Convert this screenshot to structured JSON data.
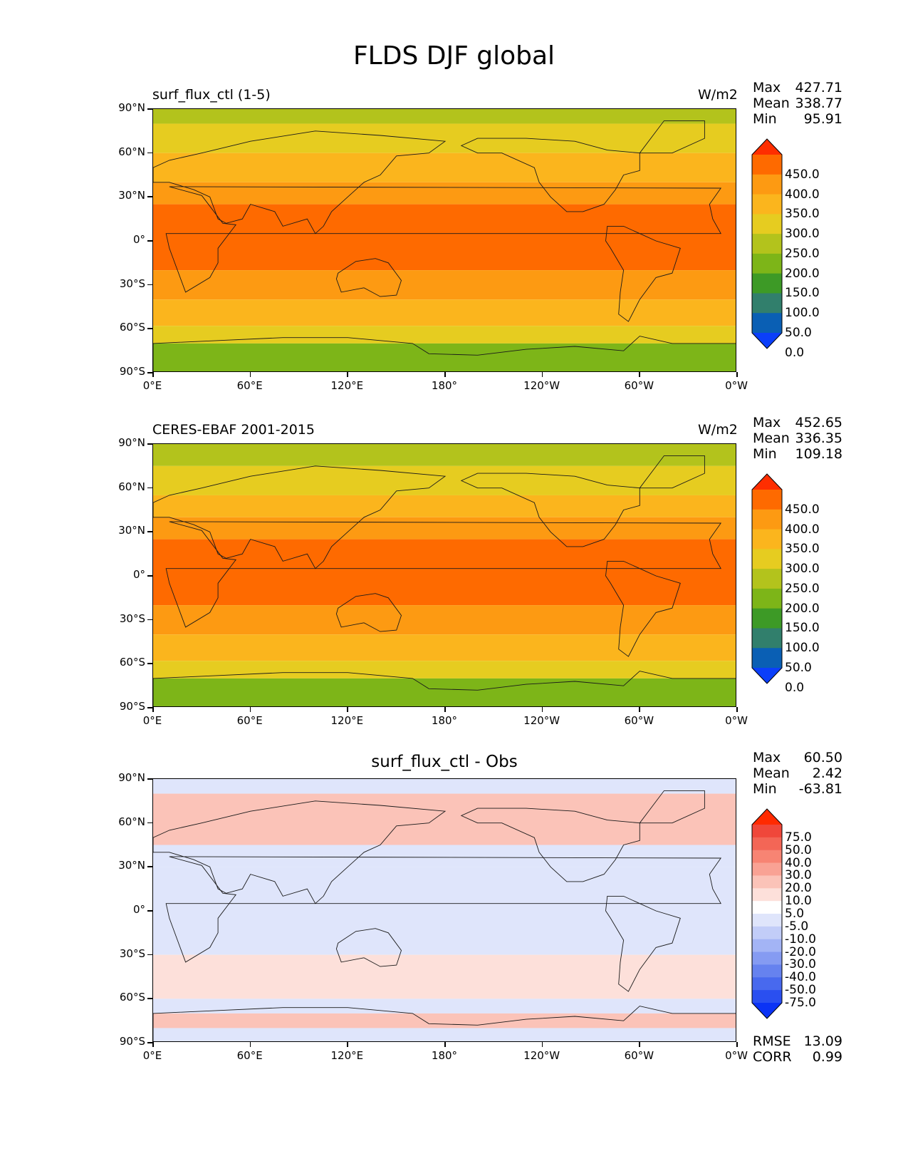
{
  "figure": {
    "title": "FLDS DJF global"
  },
  "axes": {
    "lat_ticks": [
      "90°N",
      "60°N",
      "30°N",
      "0°",
      "30°S",
      "60°S",
      "90°S"
    ],
    "lon_ticks": [
      "0°E",
      "60°E",
      "120°E",
      "180°",
      "120°W",
      "60°W",
      "0°W"
    ]
  },
  "panels": [
    {
      "left_title": "surf_flux_ctl (1-5)",
      "center_title": "",
      "units": "W/m2",
      "stats": {
        "max_label": "Max",
        "max": "427.71",
        "mean_label": "Mean",
        "mean": "338.77",
        "min_label": "Min",
        "min": "95.91"
      },
      "colorbar": {
        "labels": [
          "450.0",
          "400.0",
          "350.0",
          "300.0",
          "250.0",
          "200.0",
          "150.0",
          "100.0",
          "50.0",
          "0.0"
        ],
        "colors": [
          "#fe2e00",
          "#fe6a00",
          "#fd9a12",
          "#fbb51d",
          "#e6cc20",
          "#b3c31c",
          "#7db518",
          "#3d9a26",
          "#317f6c",
          "#0a5fb4",
          "#0b3ffa"
        ]
      }
    },
    {
      "left_title": "CERES-EBAF 2001-2015",
      "center_title": "",
      "units": "W/m2",
      "stats": {
        "max_label": "Max",
        "max": "452.65",
        "mean_label": "Mean",
        "mean": "336.35",
        "min_label": "Min",
        "min": "109.18"
      },
      "colorbar": {
        "labels": [
          "450.0",
          "400.0",
          "350.0",
          "300.0",
          "250.0",
          "200.0",
          "150.0",
          "100.0",
          "50.0",
          "0.0"
        ],
        "colors": [
          "#fe2e00",
          "#fe6a00",
          "#fd9a12",
          "#fbb51d",
          "#e6cc20",
          "#b3c31c",
          "#7db518",
          "#3d9a26",
          "#317f6c",
          "#0a5fb4",
          "#0b3ffa"
        ]
      }
    },
    {
      "left_title": "",
      "center_title": "surf_flux_ctl - Obs",
      "units": "",
      "stats": {
        "max_label": "Max",
        "max": "60.50",
        "mean_label": "Mean",
        "mean": "2.42",
        "min_label": "Min",
        "min": "-63.81"
      },
      "metrics": {
        "rmse_label": "RMSE",
        "rmse": "13.09",
        "corr_label": "CORR",
        "corr": "0.99"
      },
      "colorbar": {
        "labels": [
          "75.0",
          "50.0",
          "40.0",
          "30.0",
          "20.0",
          "10.0",
          "5.0",
          "-5.0",
          "-10.0",
          "-20.0",
          "-30.0",
          "-40.0",
          "-50.0",
          "-75.0"
        ],
        "colors": [
          "#ff2a00",
          "#f0473a",
          "#f36656",
          "#f78473",
          "#f9a294",
          "#fbc3b8",
          "#fde0da",
          "#ffffff",
          "#dfe5fb",
          "#c2cdf8",
          "#a3b4f5",
          "#859bf2",
          "#6682ef",
          "#4869ee",
          "#2a4ff0",
          "#0b33f5"
        ]
      }
    }
  ],
  "chart_data": [
    {
      "type": "heatmap",
      "title": "surf_flux_ctl (1-5)",
      "variable": "FLDS",
      "season": "DJF",
      "region": "global",
      "units": "W/m2",
      "xlabel": "",
      "ylabel": "",
      "x_ticks": [
        "0°E",
        "60°E",
        "120°E",
        "180°",
        "120°W",
        "60°W",
        "0°W"
      ],
      "y_ticks": [
        "90°N",
        "60°N",
        "30°N",
        "0°",
        "30°S",
        "60°S",
        "90°S"
      ],
      "max": 427.71,
      "mean": 338.77,
      "min": 95.91,
      "levels": [
        0,
        50,
        100,
        150,
        200,
        250,
        300,
        350,
        400,
        450
      ],
      "zonal_bands": [
        {
          "lat_from": 90,
          "lat_to": 80,
          "value": 200
        },
        {
          "lat_from": 80,
          "lat_to": 60,
          "value": 250
        },
        {
          "lat_from": 60,
          "lat_to": 40,
          "value": 300
        },
        {
          "lat_from": 40,
          "lat_to": 25,
          "value": 350
        },
        {
          "lat_from": 25,
          "lat_to": -20,
          "value": 400
        },
        {
          "lat_from": -20,
          "lat_to": -40,
          "value": 350
        },
        {
          "lat_from": -40,
          "lat_to": -58,
          "value": 300
        },
        {
          "lat_from": -58,
          "lat_to": -70,
          "value": 250
        },
        {
          "lat_from": -70,
          "lat_to": -90,
          "value": 150
        }
      ],
      "grid": false
    },
    {
      "type": "heatmap",
      "title": "CERES-EBAF 2001-2015",
      "variable": "FLDS",
      "season": "DJF",
      "region": "global",
      "units": "W/m2",
      "xlabel": "",
      "ylabel": "",
      "x_ticks": [
        "0°E",
        "60°E",
        "120°E",
        "180°",
        "120°W",
        "60°W",
        "0°W"
      ],
      "y_ticks": [
        "90°N",
        "60°N",
        "30°N",
        "0°",
        "30°S",
        "60°S",
        "90°S"
      ],
      "max": 452.65,
      "mean": 336.35,
      "min": 109.18,
      "levels": [
        0,
        50,
        100,
        150,
        200,
        250,
        300,
        350,
        400,
        450
      ],
      "zonal_bands": [
        {
          "lat_from": 90,
          "lat_to": 75,
          "value": 200
        },
        {
          "lat_from": 75,
          "lat_to": 55,
          "value": 250
        },
        {
          "lat_from": 55,
          "lat_to": 40,
          "value": 300
        },
        {
          "lat_from": 40,
          "lat_to": 25,
          "value": 350
        },
        {
          "lat_from": 25,
          "lat_to": -20,
          "value": 400
        },
        {
          "lat_from": -20,
          "lat_to": -40,
          "value": 350
        },
        {
          "lat_from": -40,
          "lat_to": -58,
          "value": 300
        },
        {
          "lat_from": -58,
          "lat_to": -70,
          "value": 250
        },
        {
          "lat_from": -70,
          "lat_to": -90,
          "value": 150
        }
      ],
      "grid": false
    },
    {
      "type": "heatmap",
      "title": "surf_flux_ctl - Obs",
      "variable": "FLDS",
      "season": "DJF",
      "region": "global",
      "units": "W/m2",
      "xlabel": "",
      "ylabel": "",
      "x_ticks": [
        "0°E",
        "60°E",
        "120°E",
        "180°",
        "120°W",
        "60°W",
        "0°W"
      ],
      "y_ticks": [
        "90°N",
        "60°N",
        "30°N",
        "0°",
        "30°S",
        "60°S",
        "90°S"
      ],
      "max": 60.5,
      "mean": 2.42,
      "min": -63.81,
      "rmse": 13.09,
      "corr": 0.99,
      "levels": [
        -75,
        -50,
        -40,
        -30,
        -20,
        -10,
        -5,
        5,
        10,
        20,
        30,
        40,
        50,
        75
      ],
      "zonal_bands": [
        {
          "lat_from": 90,
          "lat_to": 80,
          "value": 0
        },
        {
          "lat_from": 80,
          "lat_to": 45,
          "value": 20
        },
        {
          "lat_from": 45,
          "lat_to": 30,
          "value": 0
        },
        {
          "lat_from": 30,
          "lat_to": -30,
          "value": 0
        },
        {
          "lat_from": -30,
          "lat_to": -60,
          "value": 10
        },
        {
          "lat_from": -60,
          "lat_to": -70,
          "value": 0
        },
        {
          "lat_from": -70,
          "lat_to": -80,
          "value": 20
        },
        {
          "lat_from": -80,
          "lat_to": -90,
          "value": 0
        }
      ],
      "grid": false
    }
  ]
}
